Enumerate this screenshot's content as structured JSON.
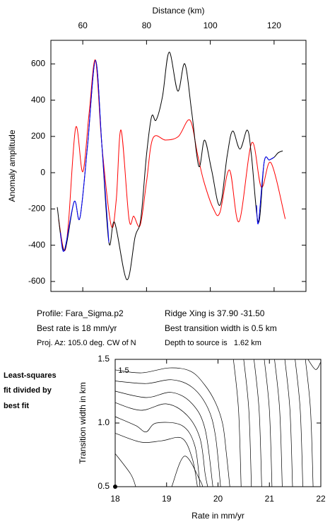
{
  "chart_data": [
    {
      "type": "line",
      "xlabel": "Distance (km)",
      "ylabel": "Anomaly amplitude",
      "xlim": [
        50,
        130
      ],
      "ylim": [
        -655,
        730
      ],
      "xticks": [
        60,
        80,
        100,
        120
      ],
      "yticks": [
        -600,
        -400,
        -200,
        0,
        200,
        400,
        600
      ],
      "series": [
        {
          "color": "#ff0000",
          "x": [
            52.4,
            54.2,
            55.5,
            57.8,
            60,
            62,
            64,
            66,
            68.9,
            70.5,
            72,
            74.5,
            76,
            78,
            80,
            82,
            86,
            90,
            93.6,
            96,
            98,
            101,
            103,
            106,
            109,
            113,
            116,
            119,
            123.5
          ],
          "values": [
            -255,
            -430,
            -280,
            250,
            5,
            330,
            620,
            150,
            -290,
            -150,
            235,
            -255,
            -240,
            -290,
            -50,
            190,
            180,
            200,
            290,
            100,
            -50,
            -200,
            -220,
            15,
            -270,
            165,
            -80,
            55,
            -255
          ]
        },
        {
          "color": "#000000",
          "x": [
            52,
            54.2,
            57.3,
            59.1,
            61.5,
            64,
            66,
            68.2,
            70,
            73.8,
            76.4,
            78.2,
            80,
            81.6,
            83,
            85,
            87.1,
            89.8,
            92,
            94.2,
            96.4,
            98.2,
            100.4,
            103,
            105.3,
            107,
            109.3,
            111.6,
            112.9,
            115.1,
            116.9,
            118.5,
            120,
            121.3,
            122.7
          ],
          "values": [
            -190,
            -430,
            -160,
            -250,
            150,
            620,
            150,
            -385,
            -275,
            -590,
            -355,
            -255,
            100,
            310,
            290,
            420,
            665,
            450,
            600,
            330,
            35,
            180,
            15,
            -180,
            95,
            230,
            130,
            235,
            95,
            -275,
            60,
            70,
            85,
            110,
            120
          ]
        },
        {
          "color": "#0000ff",
          "x": [
            53,
            54.2,
            57.3,
            59.1,
            61.5,
            64,
            66,
            68.2,
            69,
            114.5,
            115.1,
            116.9,
            118.5,
            120
          ],
          "values": [
            -330,
            -430,
            -160,
            -250,
            150,
            620,
            150,
            -385,
            null,
            -180,
            -275,
            60,
            70,
            85
          ]
        }
      ]
    },
    {
      "type": "contour",
      "xlabel": "Rate in mm/yr",
      "ylabel": "Transition width in km",
      "xlim": [
        18,
        22
      ],
      "ylim": [
        0.5,
        1.5
      ],
      "xticks": [
        18,
        19,
        20,
        21,
        22
      ],
      "yticks": [
        {
          "value": 0.5,
          "label": "0.5"
        },
        {
          "value": 1.0,
          "label": "1.0"
        },
        {
          "value": 1.5,
          "label": "1.5"
        }
      ],
      "color": "#000000",
      "contours": [
        {
          "x": [
            18,
            18.51,
            19.06,
            19.47,
            19.74,
            19.95,
            20.09,
            20.16,
            20.23
          ],
          "y": [
            1.417,
            1.394,
            1.433,
            1.406,
            1.3,
            1.161,
            0.994,
            0.772,
            0.5
          ]
        },
        {
          "x": [
            18,
            18.6,
            19.1,
            19.5,
            19.8,
            19.95,
            20.05
          ],
          "y": [
            1.33,
            1.31,
            1.34,
            1.28,
            1.12,
            0.9,
            0.5
          ]
        },
        {
          "x": [
            18,
            18.6,
            19.1,
            19.5,
            19.75,
            19.9
          ],
          "y": [
            1.25,
            1.2,
            1.24,
            1.15,
            0.95,
            0.5
          ]
        },
        {
          "x": [
            18,
            18.5,
            19.0,
            19.4,
            19.65,
            19.75,
            19.8
          ],
          "y": [
            1.16,
            1.1,
            1.15,
            1.06,
            0.88,
            0.6,
            0.5
          ]
        },
        {
          "x": [
            18,
            18.4,
            18.6,
            18.8,
            19.3,
            19.55,
            19.65
          ],
          "y": [
            1.05,
            0.98,
            0.93,
            1.0,
            0.98,
            0.82,
            0.5
          ]
        },
        {
          "x": [
            18,
            18.5,
            18.9,
            19.3,
            19.5,
            19.6
          ],
          "y": [
            0.92,
            0.85,
            0.86,
            0.88,
            0.72,
            0.5
          ]
        },
        {
          "x": [
            18,
            18.3,
            18.4
          ],
          "y": [
            0.76,
            0.6,
            0.5
          ]
        },
        {
          "x": [
            19.1,
            19.35,
            19.65,
            19.7
          ],
          "y": [
            0.5,
            0.74,
            0.55,
            0.5
          ]
        },
        {
          "x": [
            20.3,
            20.4,
            20.45
          ],
          "y": [
            1.5,
            1.1,
            0.5
          ]
        },
        {
          "x": [
            20.5,
            20.6,
            20.65
          ],
          "y": [
            1.5,
            1.1,
            0.5
          ]
        },
        {
          "x": [
            20.7,
            20.8,
            20.85
          ],
          "y": [
            1.5,
            1.1,
            0.5
          ]
        },
        {
          "x": [
            20.9,
            21.0,
            21.05
          ],
          "y": [
            1.5,
            1.1,
            0.5
          ]
        },
        {
          "x": [
            21.1,
            21.2,
            21.25
          ],
          "y": [
            1.5,
            1.1,
            0.5
          ]
        },
        {
          "x": [
            21.3,
            21.4,
            21.45
          ],
          "y": [
            1.5,
            1.1,
            0.5
          ]
        },
        {
          "x": [
            21.5,
            21.6,
            21.65
          ],
          "y": [
            1.5,
            1.1,
            0.5
          ]
        },
        {
          "x": [
            21.7,
            21.8,
            21.85
          ],
          "y": [
            1.5,
            1.1,
            0.5
          ]
        },
        {
          "x": [
            21.75,
            21.9,
            22
          ],
          "y": [
            1.5,
            1.42,
            1.48
          ]
        }
      ],
      "annotations": [
        {
          "text": "1.5",
          "x": 18.06,
          "y": 1.41
        }
      ],
      "best_fit": {
        "x": 18,
        "y": 0.5
      }
    }
  ],
  "info": {
    "profile": "Profile: Fara_Sigma.p2",
    "ridge": "Ridge Xing is 37.90 -31.50",
    "rate": "Best rate is 18 mm/yr",
    "width": "Best transition width is 0.5 km",
    "azimuth": "Proj. Az: 105.0 deg. CW of N",
    "depth": "Depth to source is   1.62 km"
  },
  "side_note": [
    "Least-squares",
    "fit divided by",
    "best fit"
  ]
}
